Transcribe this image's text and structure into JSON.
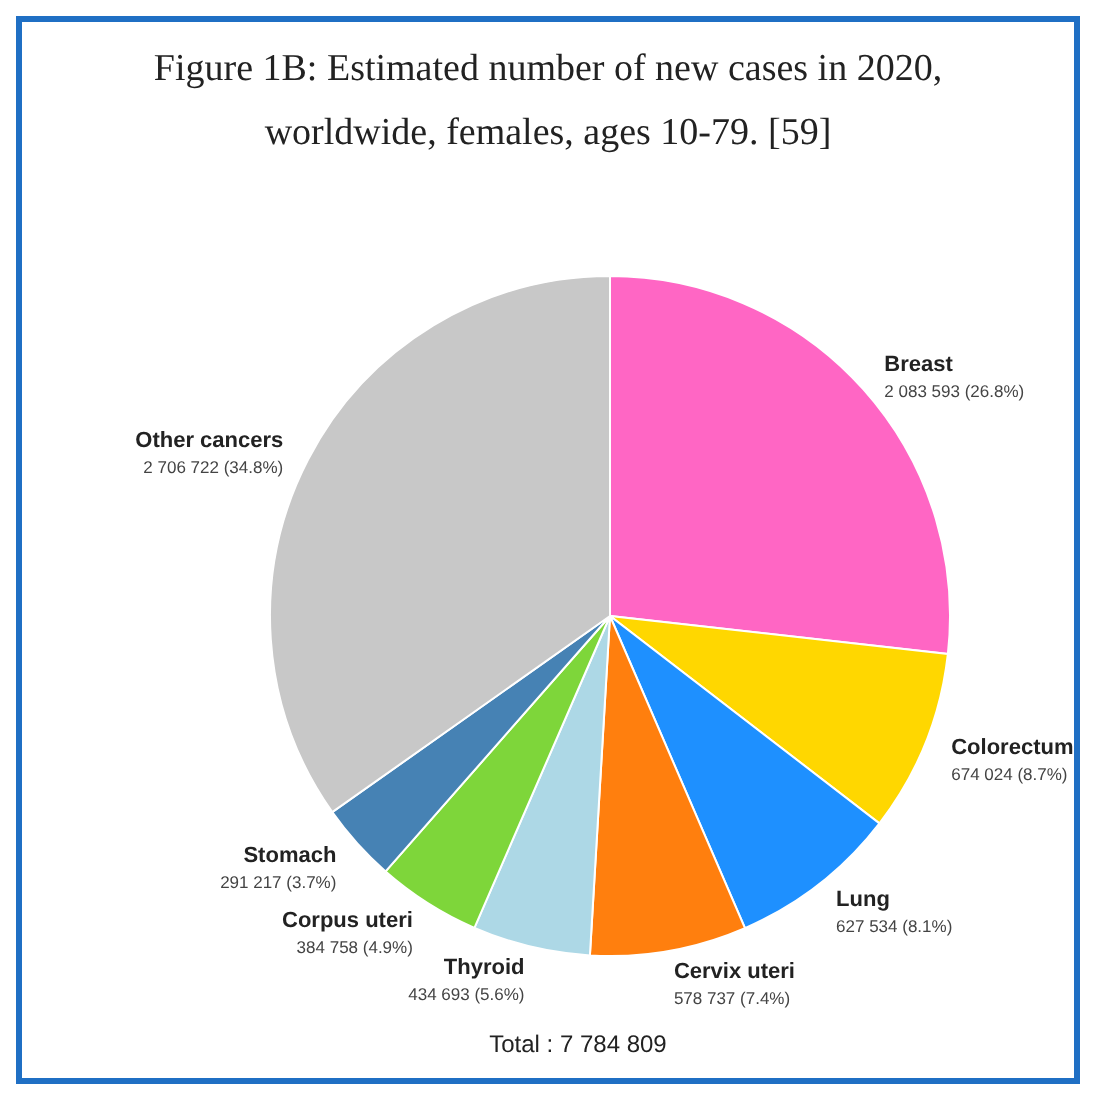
{
  "chart_data": {
    "type": "pie",
    "title": "Figure 1B: Estimated number of new cases in 2020, worldwide, females, ages 10-79. [59]",
    "categories": [
      "Breast",
      "Colorectum",
      "Lung",
      "Cervix uteri",
      "Thyroid",
      "Corpus uteri",
      "Stomach",
      "Other cancers"
    ],
    "values": [
      2083593,
      674024,
      627534,
      578737,
      434693,
      384758,
      291217,
      2706722
    ],
    "colors": [
      "#ff66c4",
      "#ffd700",
      "#1e90ff",
      "#ff7f0e",
      "#add8e6",
      "#7ed63a",
      "#4682b4",
      "#c8c8c8"
    ],
    "value_labels": [
      "2 083 593 (26.8%)",
      "674 024 (8.7%)",
      "627 534 (8.1%)",
      "578 737 (7.4%)",
      "434 693 (5.6%)",
      "384 758 (4.9%)",
      "291 217 (3.7%)",
      "2 706 722 (34.8%)"
    ],
    "annotations": [
      "Total : 7 784 809"
    ]
  }
}
